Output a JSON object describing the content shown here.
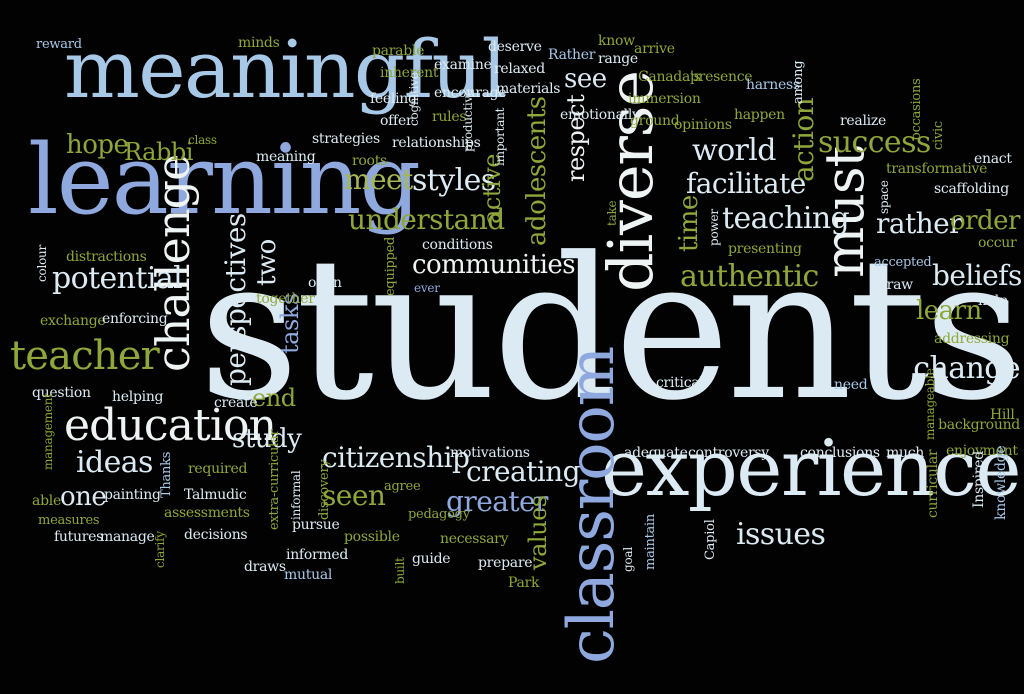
{
  "word_cloud": {
    "words": [
      {
        "text": "students",
        "color": "#dcebf3"
      },
      {
        "text": "learning",
        "color": "#8fa8de"
      },
      {
        "text": "meaningful",
        "color": "#a8c8e8"
      },
      {
        "text": "experience",
        "color": "#dcebf3"
      },
      {
        "text": "classroom",
        "color": "#8fa8de"
      },
      {
        "text": "diverse",
        "color": "#eef3f4"
      },
      {
        "text": "must",
        "color": "#eef3f4"
      },
      {
        "text": "education",
        "color": "#eef3f4"
      },
      {
        "text": "challenge",
        "color": "#eef3f4"
      },
      {
        "text": "teacher",
        "color": "#8fa63b"
      },
      {
        "text": "potential",
        "color": "#dcebf3"
      },
      {
        "text": "perspectives",
        "color": "#dcebf3"
      },
      {
        "text": "communities",
        "color": "#eef3f4"
      },
      {
        "text": "citizenship",
        "color": "#dcebf3"
      },
      {
        "text": "creating",
        "color": "#dcebf3"
      },
      {
        "text": "greater",
        "color": "#8fa8de"
      },
      {
        "text": "values",
        "color": "#8fa63b"
      },
      {
        "text": "authentic",
        "color": "#8fa63b"
      },
      {
        "text": "teaching",
        "color": "#dcebf3"
      },
      {
        "text": "facilitate",
        "color": "#dcebf3"
      },
      {
        "text": "world",
        "color": "#dcebf3"
      },
      {
        "text": "success",
        "color": "#8fa63b"
      },
      {
        "text": "action",
        "color": "#8fa63b"
      },
      {
        "text": "rather",
        "color": "#dcebf3"
      },
      {
        "text": "order",
        "color": "#8fa63b"
      },
      {
        "text": "beliefs",
        "color": "#dcebf3"
      },
      {
        "text": "learn",
        "color": "#8fa63b"
      },
      {
        "text": "change",
        "color": "#dcebf3"
      },
      {
        "text": "understand",
        "color": "#8fa63b"
      },
      {
        "text": "meet",
        "color": "#a5b852"
      },
      {
        "text": "styles",
        "color": "#dcebf3"
      },
      {
        "text": "active",
        "color": "#8fa63b"
      },
      {
        "text": "adolescents",
        "color": "#8fa63b"
      },
      {
        "text": "respect",
        "color": "#eef3f4"
      },
      {
        "text": "time",
        "color": "#8fa63b"
      },
      {
        "text": "hope",
        "color": "#8fa63b"
      },
      {
        "text": "Rabbi",
        "color": "#8fa63b"
      },
      {
        "text": "ideas",
        "color": "#dcebf3"
      },
      {
        "text": "one",
        "color": "#dcebf3"
      },
      {
        "text": "study",
        "color": "#dcebf3"
      },
      {
        "text": "end",
        "color": "#8fa63b"
      },
      {
        "text": "two",
        "color": "#dcebf3"
      },
      {
        "text": "tasks",
        "color": "#8fa8de"
      },
      {
        "text": "seen",
        "color": "#8fa63b"
      },
      {
        "text": "issues",
        "color": "#dcebf3"
      },
      {
        "text": "see",
        "color": "#dcebf3"
      },
      {
        "text": "reward",
        "color": "#a8c8e8"
      },
      {
        "text": "minds",
        "color": "#8fa63b"
      },
      {
        "text": "parable",
        "color": "#8fa63b"
      },
      {
        "text": "inherent",
        "color": "#8fa63b"
      },
      {
        "text": "examine",
        "color": "#dcebf3"
      },
      {
        "text": "deserve",
        "color": "#dcebf3"
      },
      {
        "text": "relaxed",
        "color": "#dcebf3"
      },
      {
        "text": "Rather",
        "color": "#a8c8e8"
      },
      {
        "text": "range",
        "color": "#dcebf3"
      },
      {
        "text": "know",
        "color": "#8fa63b"
      },
      {
        "text": "arrive",
        "color": "#8fa63b"
      },
      {
        "text": "Canada's",
        "color": "#8fa63b"
      },
      {
        "text": "presence",
        "color": "#8fa63b"
      },
      {
        "text": "harness",
        "color": "#a8c8e8"
      },
      {
        "text": "feeling",
        "color": "#dcebf3"
      },
      {
        "text": "encourage",
        "color": "#dcebf3"
      },
      {
        "text": "materials",
        "color": "#dcebf3"
      },
      {
        "text": "immersion",
        "color": "#8fa63b"
      },
      {
        "text": "among",
        "color": "#dcebf3"
      },
      {
        "text": "offer",
        "color": "#dcebf3"
      },
      {
        "text": "cognitive",
        "color": "#dcebf3"
      },
      {
        "text": "rules",
        "color": "#8fa63b"
      },
      {
        "text": "productive",
        "color": "#dcebf3"
      },
      {
        "text": "emotionally",
        "color": "#dcebf3"
      },
      {
        "text": "ground",
        "color": "#8fa63b"
      },
      {
        "text": "opinions",
        "color": "#8fa63b"
      },
      {
        "text": "happen",
        "color": "#8fa63b"
      },
      {
        "text": "realize",
        "color": "#dcebf3"
      },
      {
        "text": "occasions",
        "color": "#8fa63b"
      },
      {
        "text": "civic",
        "color": "#8fa63b"
      },
      {
        "text": "class",
        "color": "#8fa63b"
      },
      {
        "text": "strategies",
        "color": "#dcebf3"
      },
      {
        "text": "relationships",
        "color": "#dcebf3"
      },
      {
        "text": "important",
        "color": "#dcebf3"
      },
      {
        "text": "meaning",
        "color": "#dcebf3"
      },
      {
        "text": "roots",
        "color": "#8fa63b"
      },
      {
        "text": "transformative",
        "color": "#8fa63b"
      },
      {
        "text": "enact",
        "color": "#dcebf3"
      },
      {
        "text": "scaffolding",
        "color": "#dcebf3"
      },
      {
        "text": "space",
        "color": "#dcebf3"
      },
      {
        "text": "take",
        "color": "#8fa63b"
      },
      {
        "text": "power",
        "color": "#dcebf3"
      },
      {
        "text": "presenting",
        "color": "#8fa63b"
      },
      {
        "text": "occur",
        "color": "#8fa63b"
      },
      {
        "text": "conditions",
        "color": "#dcebf3"
      },
      {
        "text": "equipped",
        "color": "#8fa63b"
      },
      {
        "text": "accepted",
        "color": "#a8c8e8"
      },
      {
        "text": "draw",
        "color": "#dcebf3"
      },
      {
        "text": "help",
        "color": "#dcebf3"
      },
      {
        "text": "colour",
        "color": "#dcebf3"
      },
      {
        "text": "distractions",
        "color": "#8fa63b"
      },
      {
        "text": "together",
        "color": "#8fa63b"
      },
      {
        "text": "open",
        "color": "#dcebf3"
      },
      {
        "text": "ever",
        "color": "#8fa8de"
      },
      {
        "text": "exchange",
        "color": "#8fa63b"
      },
      {
        "text": "enforcing",
        "color": "#dcebf3"
      },
      {
        "text": "addressing",
        "color": "#8fa63b"
      },
      {
        "text": "question",
        "color": "#dcebf3"
      },
      {
        "text": "helping",
        "color": "#dcebf3"
      },
      {
        "text": "create",
        "color": "#dcebf3"
      },
      {
        "text": "critical",
        "color": "#dcebf3"
      },
      {
        "text": "need",
        "color": "#a8c8e8"
      },
      {
        "text": "manageable",
        "color": "#8fa63b"
      },
      {
        "text": "Hill",
        "color": "#8fa63b"
      },
      {
        "text": "background",
        "color": "#8fa63b"
      },
      {
        "text": "management",
        "color": "#8fa63b"
      },
      {
        "text": "motivations",
        "color": "#dcebf3"
      },
      {
        "text": "adequate",
        "color": "#dcebf3"
      },
      {
        "text": "controversy",
        "color": "#dcebf3"
      },
      {
        "text": "conclusions",
        "color": "#dcebf3"
      },
      {
        "text": "much",
        "color": "#dcebf3"
      },
      {
        "text": "enjoyment",
        "color": "#8fa63b"
      },
      {
        "text": "Thanks",
        "color": "#a8c8e8"
      },
      {
        "text": "required",
        "color": "#8fa63b"
      },
      {
        "text": "able",
        "color": "#8fa63b"
      },
      {
        "text": "painting",
        "color": "#dcebf3"
      },
      {
        "text": "Talmudic",
        "color": "#dcebf3"
      },
      {
        "text": "extra-curricular",
        "color": "#8fa63b"
      },
      {
        "text": "informal",
        "color": "#dcebf3"
      },
      {
        "text": "discovery",
        "color": "#8fa63b"
      },
      {
        "text": "agree",
        "color": "#8fa63b"
      },
      {
        "text": "Inspired",
        "color": "#dcebf3"
      },
      {
        "text": "curricular",
        "color": "#8fa63b"
      },
      {
        "text": "knowledge",
        "color": "#a8c8e8"
      },
      {
        "text": "measures",
        "color": "#8fa63b"
      },
      {
        "text": "assessments",
        "color": "#8fa63b"
      },
      {
        "text": "pursue",
        "color": "#dcebf3"
      },
      {
        "text": "pedagogy",
        "color": "#8fa63b"
      },
      {
        "text": "futures",
        "color": "#dcebf3"
      },
      {
        "text": "manage",
        "color": "#dcebf3"
      },
      {
        "text": "decisions",
        "color": "#dcebf3"
      },
      {
        "text": "possible",
        "color": "#8fa63b"
      },
      {
        "text": "necessary",
        "color": "#8fa63b"
      },
      {
        "text": "clarify",
        "color": "#8fa63b"
      },
      {
        "text": "informed",
        "color": "#dcebf3"
      },
      {
        "text": "goal",
        "color": "#dcebf3"
      },
      {
        "text": "maintain",
        "color": "#a8c8e8"
      },
      {
        "text": "Capiol",
        "color": "#dcebf3"
      },
      {
        "text": "draws",
        "color": "#dcebf3"
      },
      {
        "text": "mutual",
        "color": "#a8c8e8"
      },
      {
        "text": "built",
        "color": "#8fa63b"
      },
      {
        "text": "guide",
        "color": "#dcebf3"
      },
      {
        "text": "prepare",
        "color": "#dcebf3"
      },
      {
        "text": "Park",
        "color": "#8fa63b"
      }
    ]
  }
}
